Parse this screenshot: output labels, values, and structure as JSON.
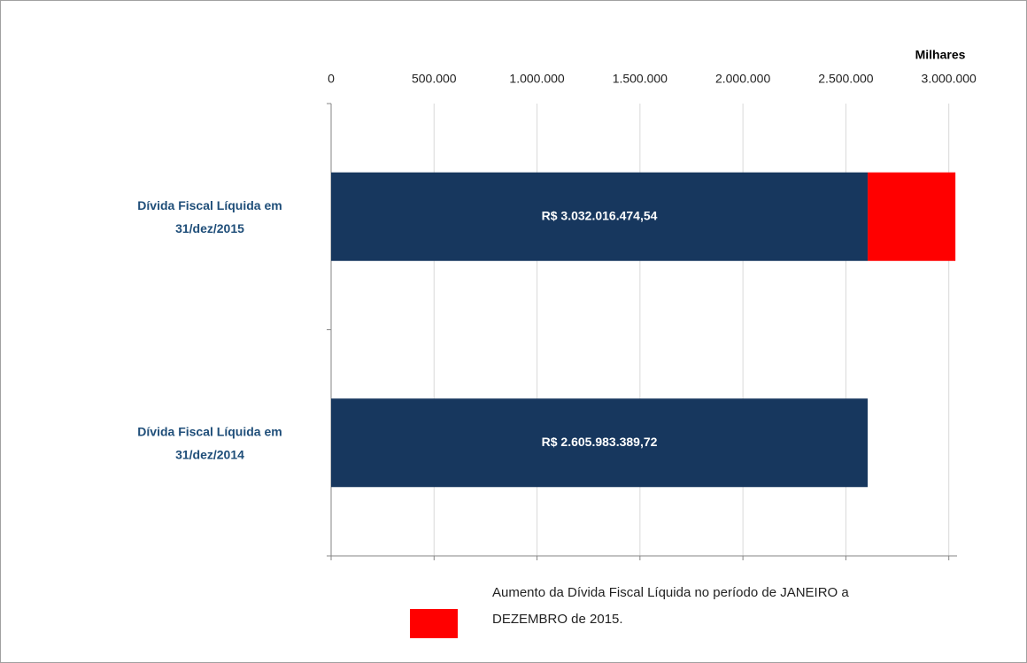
{
  "chart_data": {
    "type": "stacked-barh",
    "axis_unit": "Milhares",
    "categories": [
      "Dívida Fiscal Líquida em 31/dez/2015",
      "Dívida Fiscal Líquida em 31/dez/2014"
    ],
    "series": [
      {
        "color": "#17375e",
        "values": [
          2605983.38972,
          2605983.38972
        ]
      },
      {
        "name": "Aumento da Dívida Fiscal Líquida no período de JANEIRO a DEZEMBRO de 2015.",
        "color": "#ff0000",
        "values": [
          426033.08482,
          null
        ]
      }
    ],
    "total_values": [
      3032016.47454,
      2605983.38972
    ],
    "total_labels": [
      "R$ 3.032.016.474,54",
      "R$ 2.605.983.389,72"
    ],
    "xlim": [
      0,
      3040000
    ],
    "xticks": [
      0,
      {
        "value": 500000,
        "label": "500.000"
      },
      {
        "value": 1000000,
        "label": "1.000.000"
      },
      {
        "value": 1500000,
        "label": "1.500.000"
      },
      {
        "value": 2000000,
        "label": "2.000.000"
      },
      {
        "value": 2500000,
        "label": "2.500.000"
      },
      {
        "value": 3000000,
        "label": "3.000.000"
      }
    ],
    "grid": true
  }
}
